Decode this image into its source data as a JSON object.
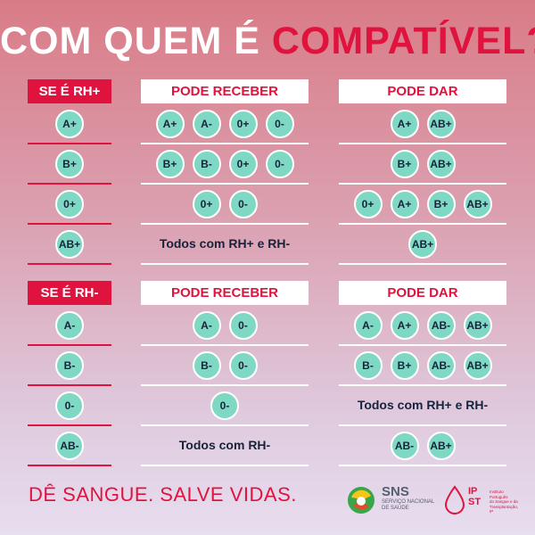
{
  "title": {
    "part1": "COM QUEM É",
    "part2": "COMPATÍVEL?"
  },
  "colors": {
    "accent_red": "#e0133f",
    "badge_green": "#7fd8c3",
    "text_dark": "#16233a"
  },
  "section_positive": {
    "header": "SE É RH+",
    "receive_header": "PODE RECEBER",
    "give_header": "PODE DAR",
    "rows": [
      {
        "type": "A+",
        "receive": [
          "A+",
          "A-",
          "0+",
          "0-"
        ],
        "give": [
          "A+",
          "AB+"
        ]
      },
      {
        "type": "B+",
        "receive": [
          "B+",
          "B-",
          "0+",
          "0-"
        ],
        "give": [
          "B+",
          "AB+"
        ]
      },
      {
        "type": "0+",
        "receive": [
          "0+",
          "0-"
        ],
        "give": [
          "0+",
          "A+",
          "B+",
          "AB+"
        ]
      },
      {
        "type": "AB+",
        "receive_text": "Todos com RH+ e RH-",
        "give": [
          "AB+"
        ]
      }
    ]
  },
  "section_negative": {
    "header": "SE É RH-",
    "receive_header": "PODE RECEBER",
    "give_header": "PODE DAR",
    "rows": [
      {
        "type": "A-",
        "receive": [
          "A-",
          "0-"
        ],
        "give": [
          "A-",
          "A+",
          "AB-",
          "AB+"
        ]
      },
      {
        "type": "B-",
        "receive": [
          "B-",
          "0-"
        ],
        "give": [
          "B-",
          "B+",
          "AB-",
          "AB+"
        ]
      },
      {
        "type": "0-",
        "receive": [
          "0-"
        ],
        "give_text": "Todos com RH+ e RH-"
      },
      {
        "type": "AB-",
        "receive_text": "Todos com RH-",
        "give": [
          "AB-",
          "AB+"
        ]
      }
    ]
  },
  "footer": {
    "slogan": "DÊ SANGUE. SALVE VIDAS.",
    "sns_logo": {
      "name": "SNS",
      "line1": "SERVIÇO NACIONAL",
      "line2": "DE SAÚDE",
      "icon": "sns-swirl-icon"
    },
    "ipst_logo": {
      "name_top": "IP",
      "name_bottom": "ST",
      "line1": "Instituto Português",
      "line2": "do Sangue e da",
      "line3": "Transplantação, IP",
      "icon": "blood-drop-icon"
    }
  }
}
